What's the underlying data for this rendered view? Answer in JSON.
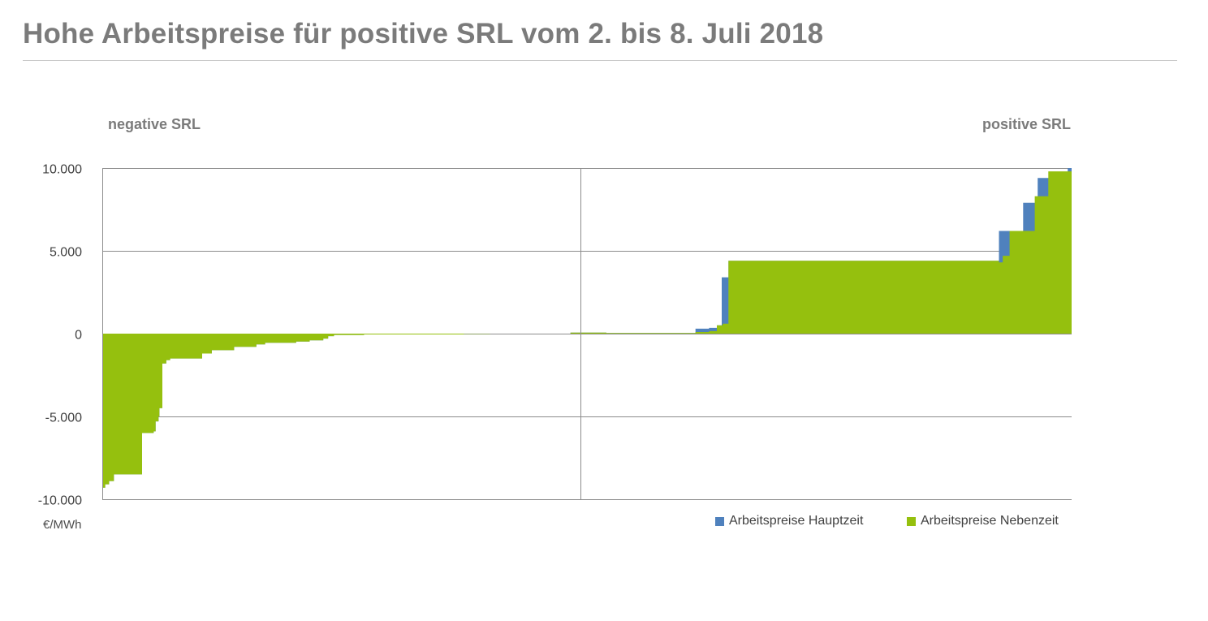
{
  "title": "Hohe Arbeitspreise für positive SRL vom 2. bis 8. Juli 2018",
  "labels": {
    "negative": "negative SRL",
    "positive": "positive SRL",
    "unit": "€/MWh"
  },
  "colors": {
    "hauptzeit": "#4f81bd",
    "nebenzeit": "#95c00e",
    "grid": "#8c8c8c",
    "axis_text": "#404040"
  },
  "chart_data": {
    "type": "area",
    "title": "Hohe Arbeitspreise für positive SRL vom 2. bis 8. Juli 2018",
    "ylabel": "€/MWh",
    "ylim": [
      -10000,
      10000
    ],
    "yticks": [
      10000,
      5000,
      0,
      -5000,
      -10000
    ],
    "ytick_labels": [
      "10.000",
      "5.000",
      "0",
      "-5.000",
      "-10.000"
    ],
    "xlim": [
      0,
      100
    ],
    "x_divider": 49.3,
    "grid": true,
    "legend_position": "bottom-right",
    "series": [
      {
        "name": "Arbeitspreise Hauptzeit",
        "color": "#4f81bd",
        "steps": [
          [
            0,
            -9300
          ],
          [
            0.3,
            -9100
          ],
          [
            0.7,
            -8900
          ],
          [
            1.2,
            -8500
          ],
          [
            4.1,
            -6000
          ],
          [
            5.3,
            -5900
          ],
          [
            5.5,
            -5300
          ],
          [
            5.8,
            -5000
          ],
          [
            5.9,
            -4500
          ],
          [
            6.2,
            -1800
          ],
          [
            6.6,
            -1600
          ],
          [
            7.0,
            -1500
          ],
          [
            10.3,
            -1200
          ],
          [
            11.3,
            -1000
          ],
          [
            13.6,
            -800
          ],
          [
            15.9,
            -650
          ],
          [
            16.8,
            -550
          ],
          [
            20.0,
            -480
          ],
          [
            21.4,
            -400
          ],
          [
            22.8,
            -300
          ],
          [
            23.3,
            -150
          ],
          [
            23.9,
            -80
          ],
          [
            27.0,
            -50
          ],
          [
            37.3,
            -20
          ],
          [
            40.0,
            0
          ],
          [
            48.3,
            60
          ],
          [
            52.0,
            40
          ],
          [
            61.2,
            300
          ],
          [
            62.6,
            350
          ],
          [
            63.4,
            500
          ],
          [
            63.9,
            3400
          ],
          [
            64.6,
            4400
          ],
          [
            92.5,
            6200
          ],
          [
            93.8,
            6200
          ],
          [
            95.0,
            7900
          ],
          [
            96.5,
            9400
          ],
          [
            97.7,
            9500
          ],
          [
            99.6,
            10000
          ]
        ],
        "end_x": 100
      },
      {
        "name": "Arbeitspreise Nebenzeit",
        "color": "#95c00e",
        "steps": [
          [
            0,
            -9300
          ],
          [
            0.3,
            -9100
          ],
          [
            0.7,
            -8900
          ],
          [
            1.2,
            -8500
          ],
          [
            4.1,
            -6000
          ],
          [
            5.3,
            -5900
          ],
          [
            5.5,
            -5300
          ],
          [
            5.8,
            -5000
          ],
          [
            5.9,
            -4500
          ],
          [
            6.2,
            -1800
          ],
          [
            6.6,
            -1600
          ],
          [
            7.0,
            -1500
          ],
          [
            10.3,
            -1200
          ],
          [
            11.3,
            -1000
          ],
          [
            13.6,
            -800
          ],
          [
            15.9,
            -650
          ],
          [
            16.8,
            -550
          ],
          [
            20.0,
            -480
          ],
          [
            21.4,
            -400
          ],
          [
            22.8,
            -300
          ],
          [
            23.3,
            -150
          ],
          [
            23.9,
            -80
          ],
          [
            27.0,
            -50
          ],
          [
            37.3,
            -20
          ],
          [
            40.0,
            0
          ],
          [
            48.3,
            60
          ],
          [
            52.0,
            40
          ],
          [
            61.2,
            100
          ],
          [
            62.6,
            150
          ],
          [
            63.4,
            500
          ],
          [
            64.0,
            600
          ],
          [
            64.6,
            4400
          ],
          [
            92.5,
            4300
          ],
          [
            92.9,
            4700
          ],
          [
            93.6,
            6200
          ],
          [
            96.2,
            8300
          ],
          [
            97.6,
            9800
          ]
        ],
        "end_x": 100
      }
    ]
  }
}
